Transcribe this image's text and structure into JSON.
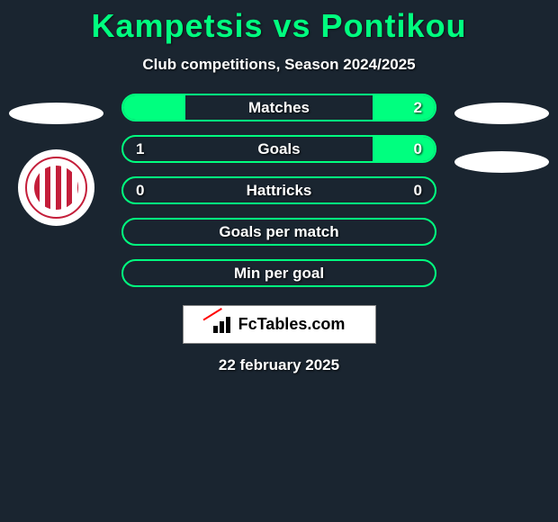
{
  "title": "Kampetsis vs Pontikou",
  "subtitle": "Club competitions, Season 2024/2025",
  "date": "22 february 2025",
  "logo_text": "FcTables.com",
  "colors": {
    "background": "#1a2530",
    "accent": "#00ff7f",
    "text": "#ffffff",
    "logo_bg": "#ffffff",
    "badge_red": "#c41e3a"
  },
  "left_player": {
    "ovals": 1,
    "has_badge": true
  },
  "right_player": {
    "ovals": 2,
    "has_badge": false
  },
  "stats": [
    {
      "label": "Matches",
      "left_value": "",
      "right_value": "2",
      "left_fill_pct": 20,
      "right_fill_pct": 20,
      "show_left": false,
      "show_right": true
    },
    {
      "label": "Goals",
      "left_value": "1",
      "right_value": "0",
      "left_fill_pct": 0,
      "right_fill_pct": 20,
      "show_left": true,
      "show_right": true
    },
    {
      "label": "Hattricks",
      "left_value": "0",
      "right_value": "0",
      "left_fill_pct": 0,
      "right_fill_pct": 0,
      "show_left": true,
      "show_right": true
    },
    {
      "label": "Goals per match",
      "left_value": "",
      "right_value": "",
      "left_fill_pct": 0,
      "right_fill_pct": 0,
      "show_left": false,
      "show_right": false
    },
    {
      "label": "Min per goal",
      "left_value": "",
      "right_value": "",
      "left_fill_pct": 0,
      "right_fill_pct": 0,
      "show_left": false,
      "show_right": false
    }
  ]
}
